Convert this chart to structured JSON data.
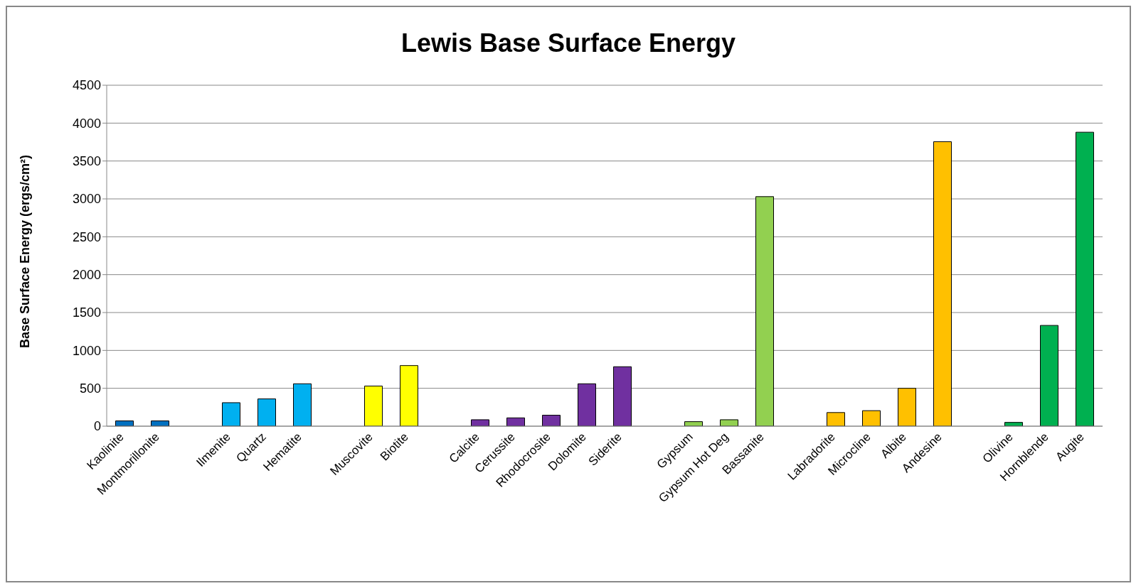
{
  "chart_data": {
    "type": "bar",
    "title": "Lewis Base Surface Energy",
    "ylabel": "Base Surface Energy (ergs/cm²)",
    "categories": [
      "Kaolinite",
      "Montmorillonite",
      null,
      "Ilmenite",
      "Quartz",
      "Hematite",
      null,
      "Muscovite",
      "Biotite",
      null,
      "Calcite",
      "Cerussite",
      "Rhodocrosite",
      "Dolomite",
      "Siderite",
      null,
      "Gypsum",
      "Gypsum Hot Deg",
      "Bassanite",
      null,
      "Labradorite",
      "Microcline",
      "Albite",
      "Andesine",
      null,
      "Olivine",
      "Hornblende",
      "Augite"
    ],
    "values": [
      70,
      70,
      null,
      310,
      360,
      560,
      null,
      530,
      800,
      null,
      85,
      110,
      145,
      560,
      785,
      null,
      60,
      85,
      3030,
      null,
      180,
      205,
      500,
      3755,
      null,
      50,
      1330,
      3880
    ],
    "colors": [
      "#0070c0",
      "#0070c0",
      null,
      "#00b0f0",
      "#00b0f0",
      "#00b0f0",
      null,
      "#ffff00",
      "#ffff00",
      null,
      "#7030a0",
      "#7030a0",
      "#7030a0",
      "#7030a0",
      "#7030a0",
      null,
      "#92d050",
      "#92d050",
      "#92d050",
      null,
      "#ffc000",
      "#ffc000",
      "#ffc000",
      "#ffc000",
      null,
      "#00b050",
      "#00b050",
      "#00b050"
    ],
    "ylim": [
      0,
      4500
    ],
    "yticks": [
      0,
      500,
      1000,
      1500,
      2000,
      2500,
      3000,
      3500,
      4000,
      4500
    ],
    "grid": "y",
    "legend": false
  }
}
